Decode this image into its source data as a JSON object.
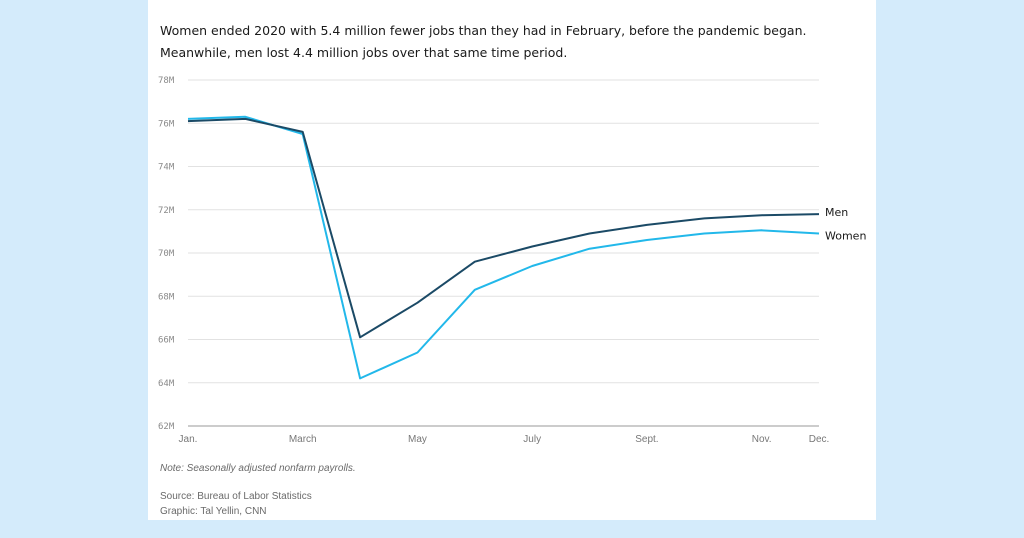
{
  "card": {
    "title": "Women ended 2020 with 5.4 million fewer jobs than they had in February, before the pandemic began. Meanwhile, men lost 4.4 million jobs over that same time period.",
    "note": "Note: Seasonally adjusted nonfarm payrolls.",
    "source": "Source: Bureau of Labor Statistics",
    "graphic": "Graphic: Tal Yellin, CNN"
  },
  "chart_data": {
    "type": "line",
    "title": "Women ended 2020 with 5.4 million fewer jobs than they had in February, before the pandemic began. Meanwhile, men lost 4.4 million jobs over that same time period.",
    "xlabel": "",
    "ylabel": "",
    "x": [
      "2020-01",
      "2020-02",
      "2020-03",
      "2020-04",
      "2020-05",
      "2020-06",
      "2020-07",
      "2020-08",
      "2020-09",
      "2020-10",
      "2020-11",
      "2020-12"
    ],
    "x_tick_labels": [
      {
        "x": "2020-01",
        "label": "Jan."
      },
      {
        "x": "2020-03",
        "label": "March"
      },
      {
        "x": "2020-05",
        "label": "May"
      },
      {
        "x": "2020-07",
        "label": "July"
      },
      {
        "x": "2020-09",
        "label": "Sept."
      },
      {
        "x": "2020-11",
        "label": "Nov."
      },
      {
        "x": "2020-12",
        "label": "Dec."
      }
    ],
    "y_ticks": [
      62,
      64,
      66,
      68,
      70,
      72,
      74,
      76,
      78
    ],
    "y_tick_labels": [
      "62M",
      "64M",
      "66M",
      "68M",
      "70M",
      "72M",
      "74M",
      "76M",
      "78M"
    ],
    "ylim": [
      62,
      78
    ],
    "grid": true,
    "legend": "direct labels at line ends (right)",
    "series": [
      {
        "name": "Men",
        "color": "#1b4a66",
        "values": [
          76.1,
          76.2,
          75.6,
          66.1,
          67.7,
          69.6,
          70.3,
          70.9,
          71.3,
          71.6,
          71.75,
          71.8
        ]
      },
      {
        "name": "Women",
        "color": "#22b8ea",
        "values": [
          76.2,
          76.3,
          75.5,
          64.2,
          65.4,
          68.3,
          69.4,
          70.2,
          70.6,
          70.9,
          71.05,
          70.9
        ]
      }
    ]
  }
}
